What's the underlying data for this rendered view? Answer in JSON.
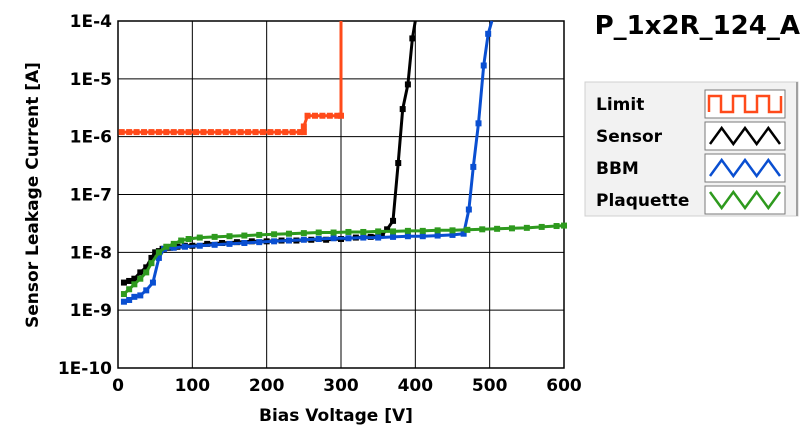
{
  "chart_data": {
    "type": "line",
    "title": "P_1x2R_124_A",
    "xlabel": "Bias Voltage [V]",
    "ylabel": "Sensor Leakage Current [A]",
    "xlim": [
      0,
      600
    ],
    "ylim": [
      1e-10,
      0.0001
    ],
    "yscale": "log",
    "grid": true,
    "legend_position": "right",
    "x_ticks": [
      {
        "value": 0,
        "label": "0"
      },
      {
        "value": 100,
        "label": "100"
      },
      {
        "value": 200,
        "label": "200"
      },
      {
        "value": 300,
        "label": "300"
      },
      {
        "value": 400,
        "label": "400"
      },
      {
        "value": 500,
        "label": "500"
      },
      {
        "value": 600,
        "label": "600"
      }
    ],
    "y_ticks": [
      {
        "value": 1e-10,
        "label": "1E-10"
      },
      {
        "value": 1e-09,
        "label": "1E-9"
      },
      {
        "value": 1e-08,
        "label": "1E-8"
      },
      {
        "value": 1e-07,
        "label": "1E-7"
      },
      {
        "value": 1e-06,
        "label": "1E-6"
      },
      {
        "value": 1e-05,
        "label": "1E-5"
      },
      {
        "value": 0.0001,
        "label": "1E-4"
      }
    ],
    "series": [
      {
        "name": "Limit",
        "color": "#ff4a1a",
        "points": [
          [
            5,
            1.2e-06
          ],
          [
            15,
            1.2e-06
          ],
          [
            25,
            1.2e-06
          ],
          [
            35,
            1.2e-06
          ],
          [
            45,
            1.2e-06
          ],
          [
            55,
            1.2e-06
          ],
          [
            65,
            1.2e-06
          ],
          [
            75,
            1.2e-06
          ],
          [
            85,
            1.2e-06
          ],
          [
            95,
            1.2e-06
          ],
          [
            105,
            1.2e-06
          ],
          [
            115,
            1.2e-06
          ],
          [
            125,
            1.2e-06
          ],
          [
            135,
            1.2e-06
          ],
          [
            145,
            1.2e-06
          ],
          [
            155,
            1.2e-06
          ],
          [
            165,
            1.2e-06
          ],
          [
            175,
            1.2e-06
          ],
          [
            185,
            1.2e-06
          ],
          [
            195,
            1.2e-06
          ],
          [
            205,
            1.2e-06
          ],
          [
            215,
            1.2e-06
          ],
          [
            225,
            1.2e-06
          ],
          [
            235,
            1.2e-06
          ],
          [
            245,
            1.2e-06
          ],
          [
            250,
            1.2e-06
          ],
          [
            250,
            1.5e-06
          ],
          [
            255,
            2.3e-06
          ],
          [
            265,
            2.3e-06
          ],
          [
            275,
            2.3e-06
          ],
          [
            285,
            2.3e-06
          ],
          [
            295,
            2.3e-06
          ],
          [
            300,
            2.3e-06
          ],
          [
            300,
            0.0001
          ]
        ]
      },
      {
        "name": "Sensor",
        "color": "#000000",
        "points": [
          [
            8,
            3e-09
          ],
          [
            15,
            3.2e-09
          ],
          [
            22,
            3.5e-09
          ],
          [
            30,
            4.5e-09
          ],
          [
            38,
            5.5e-09
          ],
          [
            45,
            8e-09
          ],
          [
            50,
            1e-08
          ],
          [
            55,
            1.05e-08
          ],
          [
            60,
            1.15e-08
          ],
          [
            70,
            1.2e-08
          ],
          [
            80,
            1.25e-08
          ],
          [
            90,
            1.3e-08
          ],
          [
            100,
            1.3e-08
          ],
          [
            120,
            1.4e-08
          ],
          [
            140,
            1.45e-08
          ],
          [
            160,
            1.5e-08
          ],
          [
            180,
            1.55e-08
          ],
          [
            200,
            1.55e-08
          ],
          [
            220,
            1.6e-08
          ],
          [
            240,
            1.6e-08
          ],
          [
            260,
            1.65e-08
          ],
          [
            280,
            1.65e-08
          ],
          [
            300,
            1.7e-08
          ],
          [
            320,
            1.8e-08
          ],
          [
            340,
            1.85e-08
          ],
          [
            355,
            2e-08
          ],
          [
            362,
            2.5e-08
          ],
          [
            370,
            3.5e-08
          ],
          [
            377,
            3.5e-07
          ],
          [
            383,
            3e-06
          ],
          [
            390,
            8e-06
          ],
          [
            396,
            5e-05
          ],
          [
            400,
            0.0001
          ]
        ]
      },
      {
        "name": "BBM",
        "color": "#0a4fd1",
        "points": [
          [
            8,
            1.4e-09
          ],
          [
            15,
            1.5e-09
          ],
          [
            22,
            1.7e-09
          ],
          [
            30,
            1.8e-09
          ],
          [
            38,
            2.2e-09
          ],
          [
            47,
            3e-09
          ],
          [
            55,
            8e-09
          ],
          [
            62,
            1.15e-08
          ],
          [
            75,
            1.2e-08
          ],
          [
            90,
            1.25e-08
          ],
          [
            110,
            1.3e-08
          ],
          [
            130,
            1.35e-08
          ],
          [
            150,
            1.4e-08
          ],
          [
            170,
            1.45e-08
          ],
          [
            190,
            1.5e-08
          ],
          [
            210,
            1.55e-08
          ],
          [
            230,
            1.6e-08
          ],
          [
            250,
            1.65e-08
          ],
          [
            270,
            1.7e-08
          ],
          [
            290,
            1.75e-08
          ],
          [
            310,
            1.75e-08
          ],
          [
            330,
            1.8e-08
          ],
          [
            350,
            1.8e-08
          ],
          [
            370,
            1.85e-08
          ],
          [
            390,
            1.9e-08
          ],
          [
            410,
            1.9e-08
          ],
          [
            430,
            1.95e-08
          ],
          [
            450,
            2e-08
          ],
          [
            465,
            2.1e-08
          ],
          [
            472,
            5.5e-08
          ],
          [
            478,
            3e-07
          ],
          [
            485,
            1.7e-06
          ],
          [
            492,
            1.7e-05
          ],
          [
            498,
            6e-05
          ],
          [
            503,
            0.0001
          ]
        ]
      },
      {
        "name": "Plaquette",
        "color": "#2e9a1e",
        "points": [
          [
            8,
            1.9e-09
          ],
          [
            15,
            2.3e-09
          ],
          [
            22,
            2.8e-09
          ],
          [
            30,
            3.5e-09
          ],
          [
            38,
            4.5e-09
          ],
          [
            45,
            6.5e-09
          ],
          [
            55,
            1e-08
          ],
          [
            65,
            1.25e-08
          ],
          [
            75,
            1.4e-08
          ],
          [
            85,
            1.6e-08
          ],
          [
            95,
            1.7e-08
          ],
          [
            110,
            1.8e-08
          ],
          [
            130,
            1.85e-08
          ],
          [
            150,
            1.9e-08
          ],
          [
            170,
            1.95e-08
          ],
          [
            190,
            2e-08
          ],
          [
            210,
            2.05e-08
          ],
          [
            230,
            2.1e-08
          ],
          [
            250,
            2.15e-08
          ],
          [
            270,
            2.2e-08
          ],
          [
            290,
            2.2e-08
          ],
          [
            310,
            2.25e-08
          ],
          [
            330,
            2.25e-08
          ],
          [
            350,
            2.3e-08
          ],
          [
            370,
            2.3e-08
          ],
          [
            390,
            2.35e-08
          ],
          [
            410,
            2.35e-08
          ],
          [
            430,
            2.4e-08
          ],
          [
            450,
            2.4e-08
          ],
          [
            470,
            2.45e-08
          ],
          [
            490,
            2.5e-08
          ],
          [
            510,
            2.55e-08
          ],
          [
            530,
            2.6e-08
          ],
          [
            550,
            2.65e-08
          ],
          [
            570,
            2.75e-08
          ],
          [
            590,
            2.85e-08
          ],
          [
            600,
            2.9e-08
          ]
        ]
      }
    ]
  }
}
